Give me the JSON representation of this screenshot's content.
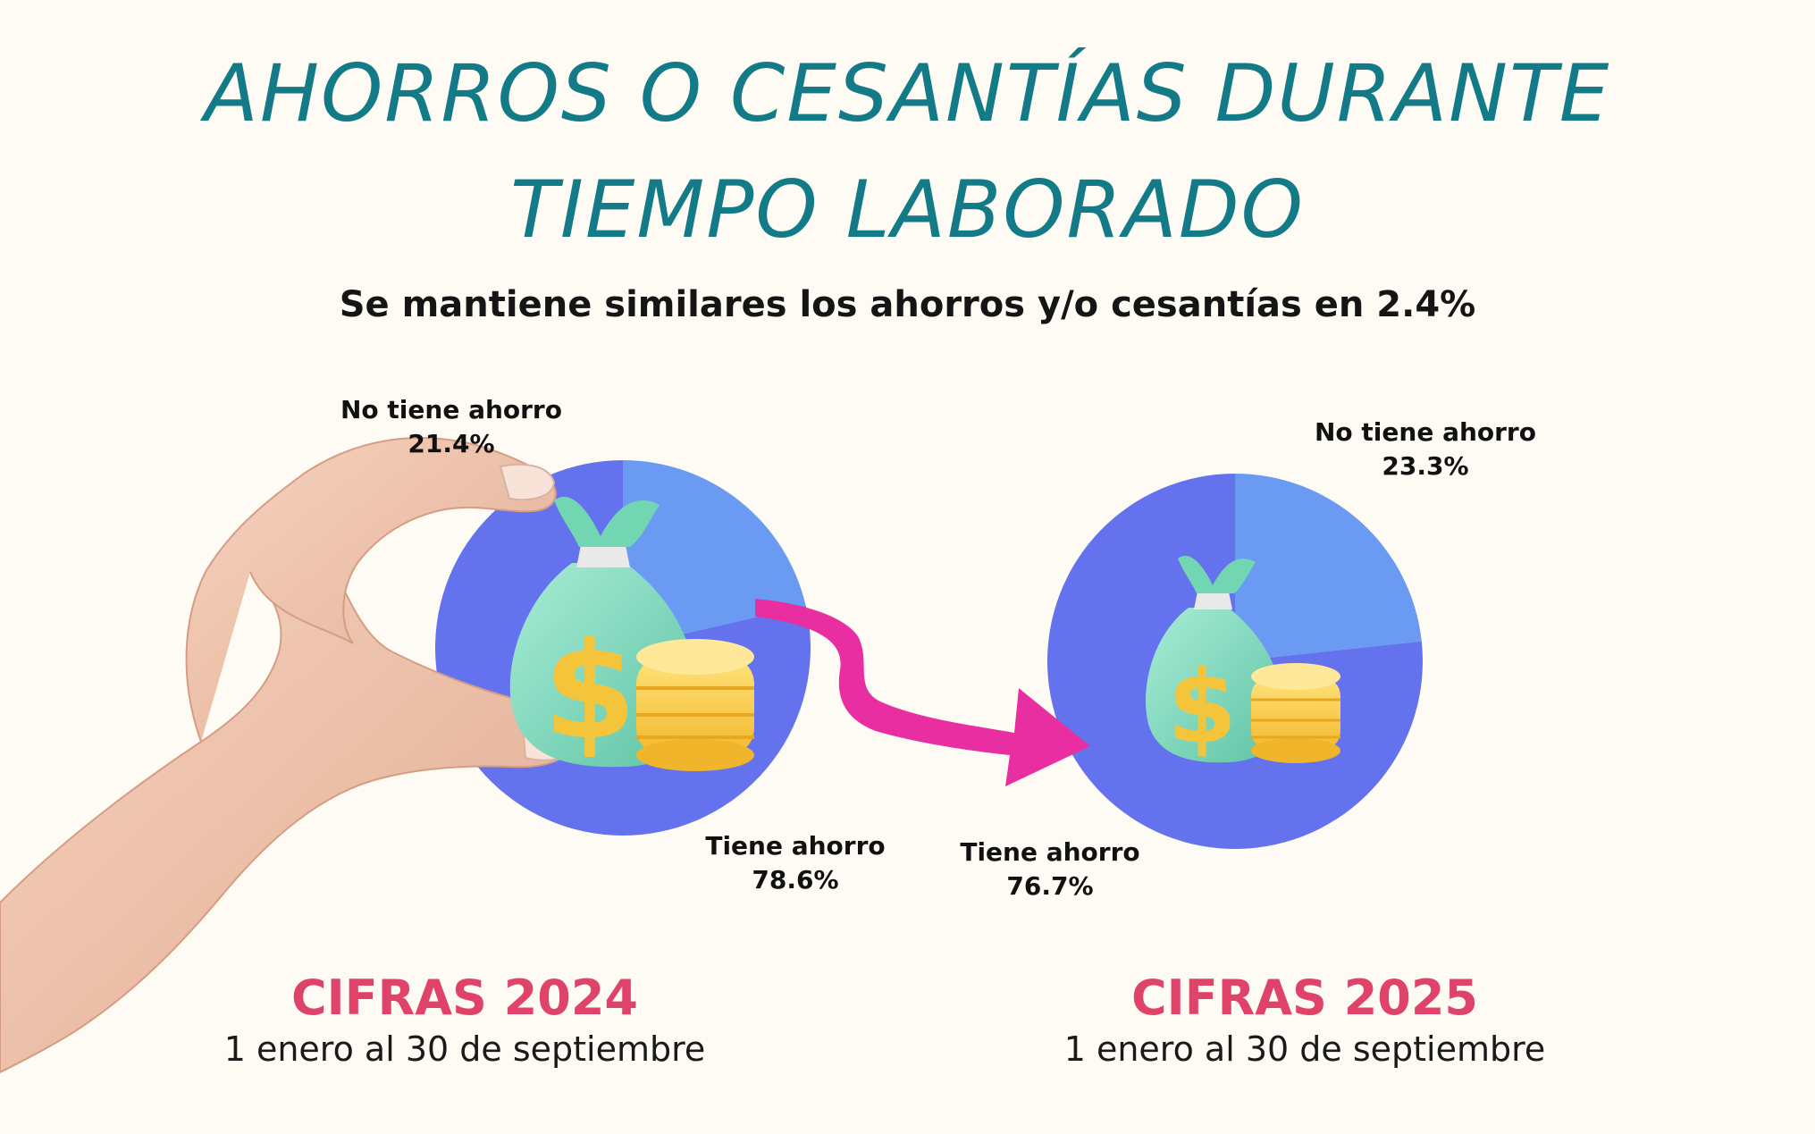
{
  "header": {
    "title_line1": "AHORROS O CESANTÍAS DURANTE",
    "title_line2": "TIEMPO LABORADO",
    "subtitle": "Se mantiene similares los ahorros y/o cesantías en 2.4%"
  },
  "colors": {
    "tiene_ahorro": "#6472ee",
    "no_tiene_ahorro": "#6a9af2",
    "arrow": "#e82ea0",
    "title": "#137a87",
    "year": "#e0436a"
  },
  "icons": [
    "hand-icon",
    "money-bag-icon",
    "coin-stack-icon",
    "arrow-icon"
  ],
  "chart_data": [
    {
      "type": "pie",
      "slices": [
        {
          "label": "No tiene ahorro",
          "value": 21.4,
          "value_label": "21.4%"
        },
        {
          "label": "Tiene ahorro",
          "value": 78.6,
          "value_label": "78.6%"
        }
      ],
      "footer_title": "CIFRAS 2024",
      "footer_range": "1 enero al 30 de septiembre"
    },
    {
      "type": "pie",
      "slices": [
        {
          "label": "No tiene ahorro",
          "value": 23.3,
          "value_label": "23.3%"
        },
        {
          "label": "Tiene ahorro",
          "value": 76.7,
          "value_label": "76.7%"
        }
      ],
      "footer_title": "CIFRAS 2025",
      "footer_range": "1 enero al 30 de septiembre"
    }
  ]
}
